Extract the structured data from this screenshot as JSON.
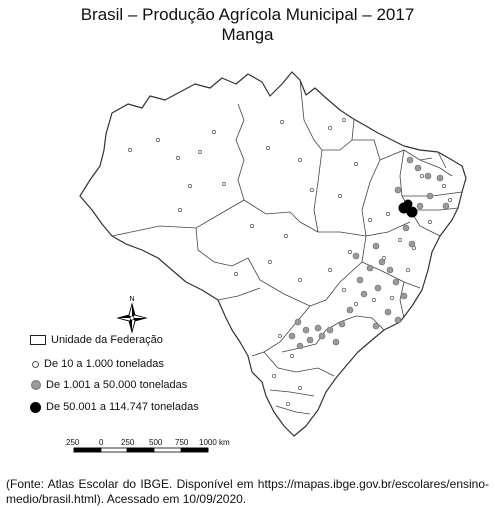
{
  "title_line1": "Brasil – Produção Agrícola Municipal – 2017",
  "title_line2": "Manga",
  "north_label": "N",
  "legend": {
    "unit_label": "Unidade da Federação",
    "class1": "De 10 a 1.000 toneladas",
    "class2": "De 1.001 a 50.000 toneladas",
    "class3": "De 50.001 a 114.747 toneladas"
  },
  "scale": {
    "ticks": [
      "250",
      "0",
      "250",
      "500",
      "750",
      "1000 km"
    ]
  },
  "source": "(Fonte: Atlas Escolar do IBGE. Disponível em https://mapas.ibge.gov.br/escolares/ensino-medio/brasil.html). Acessado em 10/09/2020.",
  "colors": {
    "outline": "#333333",
    "small_dot": "#ffffff",
    "medium_dot": "#9a9a9a",
    "large_dot": "#000000"
  }
}
